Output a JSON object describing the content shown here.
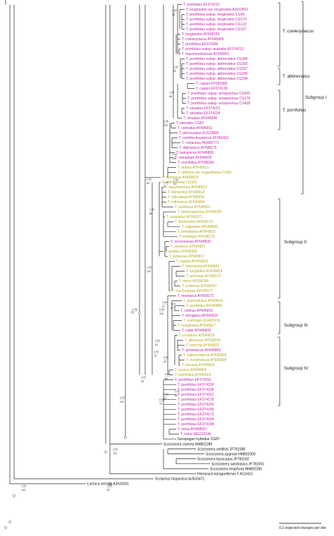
{
  "colors": {
    "magenta": "#c41ca7",
    "olive": "#b5a619",
    "black": "#111111",
    "branch": "#000000"
  },
  "taxa": [
    {
      "label": "T. porrifolius  EF374210",
      "color": "magenta"
    },
    {
      "label": "T. longirostris var. longirostris  AJ633502",
      "color": "magenta"
    },
    {
      "label": "T. porrifolius subsp. longirostris  CG69",
      "color": "magenta"
    },
    {
      "label": "T. porrifolius subsp. longirostris  CG179",
      "color": "magenta"
    },
    {
      "label": "T. porrifolius subsp. longirostris  CG122",
      "color": "magenta"
    },
    {
      "label": "T. porrifolius subsp. longirostris  CG107",
      "color": "magenta"
    },
    {
      "label": "T. longirostris  AY508183",
      "color": "magenta"
    },
    {
      "label": "T. coelesyriacus  AY645809",
      "color": "magenta"
    },
    {
      "label": "T. porrifolius  EF374184",
      "color": "magenta"
    },
    {
      "label": "T. porrifolius subsp. australis  EF374213",
      "color": "magenta"
    },
    {
      "label": "T. krascheninnikovii  AY645821",
      "color": "magenta"
    },
    {
      "label": "T. porrifolius subsp. abbreviatus  CG345",
      "color": "magenta"
    },
    {
      "label": "T. porrifolius subsp. abbreviatus  CG302",
      "color": "magenta"
    },
    {
      "label": "T. porrifolius subsp. abbreviatus  CG337",
      "color": "magenta"
    },
    {
      "label": "T. porrifolius subsp. abbreviatus  CG296",
      "color": "magenta"
    },
    {
      "label": "T. porrifolius subsp. abbreviatus  CG184",
      "color": "magenta"
    },
    {
      "label": "T. cupani  KF050386",
      "color": "magenta"
    },
    {
      "label": "T. cupani  EF374138",
      "color": "magenta"
    },
    {
      "label": "T. porrifolius subsp. eriospermus  CG435",
      "color": "magenta"
    },
    {
      "label": "T. porrifolius subsp. eriospermus  CG178",
      "color": "magenta"
    },
    {
      "label": "T. porrifolius subsp. eriospermus  CG438",
      "color": "magenta"
    },
    {
      "label": "T. sinuatus  EF374221",
      "color": "magenta"
    },
    {
      "label": "T. sinuatus  EF374224",
      "color": "magenta"
    },
    {
      "label": "T. sinuatus  AY645838",
      "color": "magenta"
    },
    {
      "label": "T. pterodes  CG52",
      "color": "magenta"
    },
    {
      "label": "T. coloratus  AY645811",
      "color": "magenta"
    },
    {
      "label": "T. pterocarpus  EU124006",
      "color": "magenta"
    },
    {
      "label": "T. nachitschevanicus  KF050432",
      "color": "magenta"
    },
    {
      "label": "T. cretaceus  HQ456771",
      "color": "magenta"
    },
    {
      "label": "T. afghanicus  AY508175",
      "color": "magenta"
    },
    {
      "label": "T. balcanicus  AY645805",
      "color": "magenta"
    },
    {
      "label": "T. samaritani  AY645835",
      "color": "magenta"
    },
    {
      "label": "T. crocifolius  AY508180",
      "color": "magenta"
    },
    {
      "label": "T. dubius  AY645813",
      "color": "olive"
    },
    {
      "label": "T. latifolius var. angustifolius  CG82",
      "color": "olive"
    },
    {
      "label": "T. olympicus  AY645829",
      "color": "olive"
    },
    {
      "label": "T. dshimilensis  CG301",
      "color": "olive"
    },
    {
      "label": "T. dasyrhynchus  AY645812",
      "color": "olive"
    },
    {
      "label": "T. dubiorobyi  AY645814",
      "color": "olive"
    },
    {
      "label": "T. reticulatus  AY645834",
      "color": "olive"
    },
    {
      "label": "T. ruthenicus  AY645834",
      "color": "olive"
    },
    {
      "label": "T. podolicus  AY645831",
      "color": "olive"
    },
    {
      "label": "T. heterospermus  AY508185",
      "color": "olive"
    },
    {
      "label": "T. undulatus  AY508171",
      "color": "olive"
    },
    {
      "label": "T. brevirostris  AY508174",
      "color": "olive"
    },
    {
      "label": "T. vaginatus  AY645839",
      "color": "olive"
    },
    {
      "label": "T. kemulariae  AY645820",
      "color": "olive"
    },
    {
      "label": "T. kindingeri  AY508178",
      "color": "olive"
    },
    {
      "label": "T. scorsonerae  AY645839",
      "color": "magenta"
    },
    {
      "label": "T. serotinus  AY645837",
      "color": "olive"
    },
    {
      "label": "T. pusillus  AY645830",
      "color": "olive"
    },
    {
      "label": "T. tortuosus  AY645817",
      "color": "olive"
    },
    {
      "label": "T. hayekii  AY645818",
      "color": "olive"
    },
    {
      "label": "T. tommasinii  AY645842",
      "color": "olive"
    },
    {
      "label": "T. longifolius  AY645824",
      "color": "olive"
    },
    {
      "label": "T. orientalis  AY508170",
      "color": "olive"
    },
    {
      "label": "T. minor  AY508184",
      "color": "olive"
    },
    {
      "label": "T. pratensis  AY508187",
      "color": "olive"
    },
    {
      "label": "T. trachycarpus  AY508177",
      "color": "olive"
    },
    {
      "label": "T. montanus  AY508172",
      "color": "magenta"
    },
    {
      "label": "T. graminifolius  AY508411",
      "color": "olive"
    },
    {
      "label": "T. porrifolius  AY645806",
      "color": "olive"
    },
    {
      "label": "T. collinus  AY645810",
      "color": "magenta"
    },
    {
      "label": "T. elongatus  AY645815",
      "color": "magenta"
    },
    {
      "label": "T. rechingeri  EU481619",
      "color": "olive"
    },
    {
      "label": "T. marginatus  AY645827",
      "color": "olive"
    },
    {
      "label": "T. ruber  AY645833",
      "color": "magenta"
    },
    {
      "label": "T. jezdianus  AY645819",
      "color": "olive"
    },
    {
      "label": "T. altimenus  AY508183",
      "color": "olive"
    },
    {
      "label": "T. kotschyi  AY645822",
      "color": "olive"
    },
    {
      "label": "T. armeniacus  AY645803",
      "color": "magenta"
    },
    {
      "label": "T. makeschianus  AY645826",
      "color": "olive"
    },
    {
      "label": "T. meskheticus  AY645828",
      "color": "olive"
    },
    {
      "label": "T. lanceus  AY645816",
      "color": "olive"
    },
    {
      "label": "T. aureus  AY645804",
      "color": "olive"
    },
    {
      "label": "T. laricifolius  AY645823",
      "color": "olive"
    },
    {
      "label": "T. porrifolius  EF374152",
      "color": "magenta"
    },
    {
      "label": "T. porrifolius  EF374150",
      "color": "magenta"
    },
    {
      "label": "T. porrifolius  EF374158",
      "color": "magenta"
    },
    {
      "label": "T. porrifolius  EF374161",
      "color": "magenta"
    },
    {
      "label": "T. porrifolius  EF374178",
      "color": "magenta"
    },
    {
      "label": "T. porrifolius  EF374209",
      "color": "magenta"
    },
    {
      "label": "T. porrifolius  EF374149",
      "color": "magenta"
    },
    {
      "label": "T. porrifolius  EF374172",
      "color": "magenta"
    },
    {
      "label": "T. porrifolius  EF374154",
      "color": "magenta"
    },
    {
      "label": "T. porrifolius  EF374168",
      "color": "magenta"
    },
    {
      "label": "T. mirus  AY458587",
      "color": "magenta"
    },
    {
      "label": "T. mirus  MG220246",
      "color": "magenta"
    },
    {
      "label": "Geropogon hybridus  CG87",
      "color": "black"
    },
    {
      "label": "Scorzonera cinerea  HM802289",
      "color": "black"
    },
    {
      "label": "Scorzonera seidlitzii  JF781588",
      "color": "black"
    },
    {
      "label": "Scorzonera pygmae  HM802300",
      "color": "black"
    },
    {
      "label": "Scorzonera laciocarpa  JF781592",
      "color": "black"
    },
    {
      "label": "Scorzonera sandrasica  JF781591",
      "color": "black"
    },
    {
      "label": "Scorzonera eriophora  HM802285",
      "color": "black"
    },
    {
      "label": "Hieracium karagoellense  FJ613413",
      "color": "black"
    },
    {
      "label": "Scolymus hispanicus  AJ633471",
      "color": "black"
    },
    {
      "label": "Lactuca serriola  AJ633331",
      "color": "black"
    }
  ],
  "support_labels": [
    {
      "top": "1.00",
      "bottom": "100"
    },
    {
      "top": "1.00",
      "bottom": "91"
    },
    {
      "top": "1.00",
      "bottom": "86"
    },
    {
      "top": "1.00",
      "bottom": "96"
    },
    {
      "top": "1.00",
      "bottom": "99"
    },
    {
      "top": "1.00",
      "bottom": "100"
    },
    {
      "top": "0.98",
      "bottom": "97"
    },
    {
      "top": "0.96",
      "bottom": "100"
    },
    {
      "top": "1.00",
      "bottom": "82"
    },
    {
      "top": "0.91",
      "bottom": "86"
    },
    {
      "top": "1.00",
      "bottom": "88"
    },
    {
      "top": "1.00",
      "bottom": "84"
    },
    {
      "top": "1.00",
      "bottom": "100"
    },
    {
      "top": "1.00",
      "bottom": "91"
    },
    {
      "top": "1.00",
      "bottom": "65"
    },
    {
      "top": "1.00",
      "bottom": "82"
    },
    {
      "top": "0.98",
      "bottom": "70"
    },
    {
      "top": "0.99",
      "bottom": "95"
    },
    {
      "top": "1.00",
      "bottom": "81"
    },
    {
      "top": "1.00",
      "bottom": "75"
    },
    {
      "top": "1.00",
      "bottom": "66"
    },
    {
      "top": "1.00",
      "bottom": "100"
    },
    {
      "top": "1.00",
      "bottom": "100"
    },
    {
      "top": "0.92",
      "bottom": "82"
    },
    {
      "top": "0.96",
      "bottom": ""
    },
    {
      "top": "1.00",
      "bottom": "100"
    }
  ],
  "groups": [
    {
      "label": "T. coelesyriacus"
    },
    {
      "label": "T. abbreviatus"
    },
    {
      "label": "T. porrifolius"
    },
    {
      "label": "Subgroup I"
    },
    {
      "label": "Subgroup II"
    },
    {
      "label": "Subgroup III"
    },
    {
      "label": "Subgroup IV"
    }
  ],
  "scale_bar": {
    "label": "0.2 expected changes per site"
  }
}
